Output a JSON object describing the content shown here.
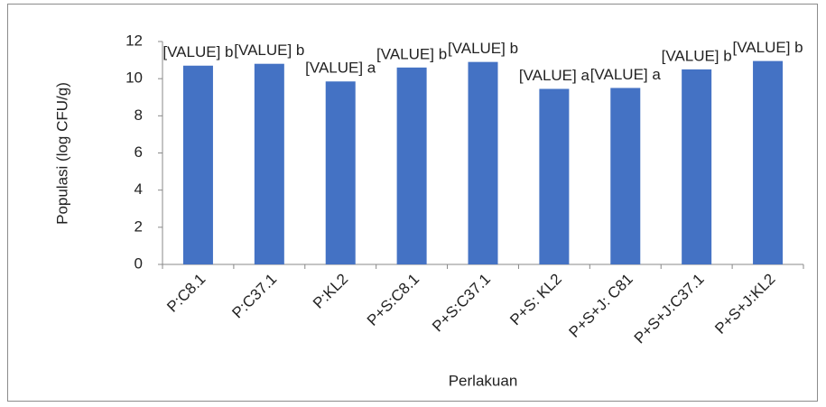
{
  "chart_data": {
    "type": "bar",
    "x_label": "Perlakuan",
    "y_label": "Populasi (log CFU/g)",
    "categories": [
      "P:C8.1",
      "P:C37.1",
      "P:KL2",
      "P+S:C8.1",
      "P+S:C37.1",
      "P+S: KL2",
      "P+S+J: C81",
      "P+S+J:C37.1",
      "P+S+J:KL2"
    ],
    "values": [
      10.7,
      10.8,
      9.85,
      10.6,
      10.9,
      9.45,
      9.5,
      10.5,
      10.95
    ],
    "value_labels": [
      "[VALUE] b",
      "[VALUE] b",
      "[VALUE] a",
      "[VALUE] b",
      "[VALUE] b",
      "[VALUE] a",
      "[VALUE] a",
      "[VALUE] b",
      "[VALUE] b"
    ],
    "color": "#4472c4",
    "ylim": [
      0,
      12
    ],
    "yticks": [
      0,
      2,
      4,
      6,
      8,
      10,
      12
    ],
    "grid": false
  }
}
